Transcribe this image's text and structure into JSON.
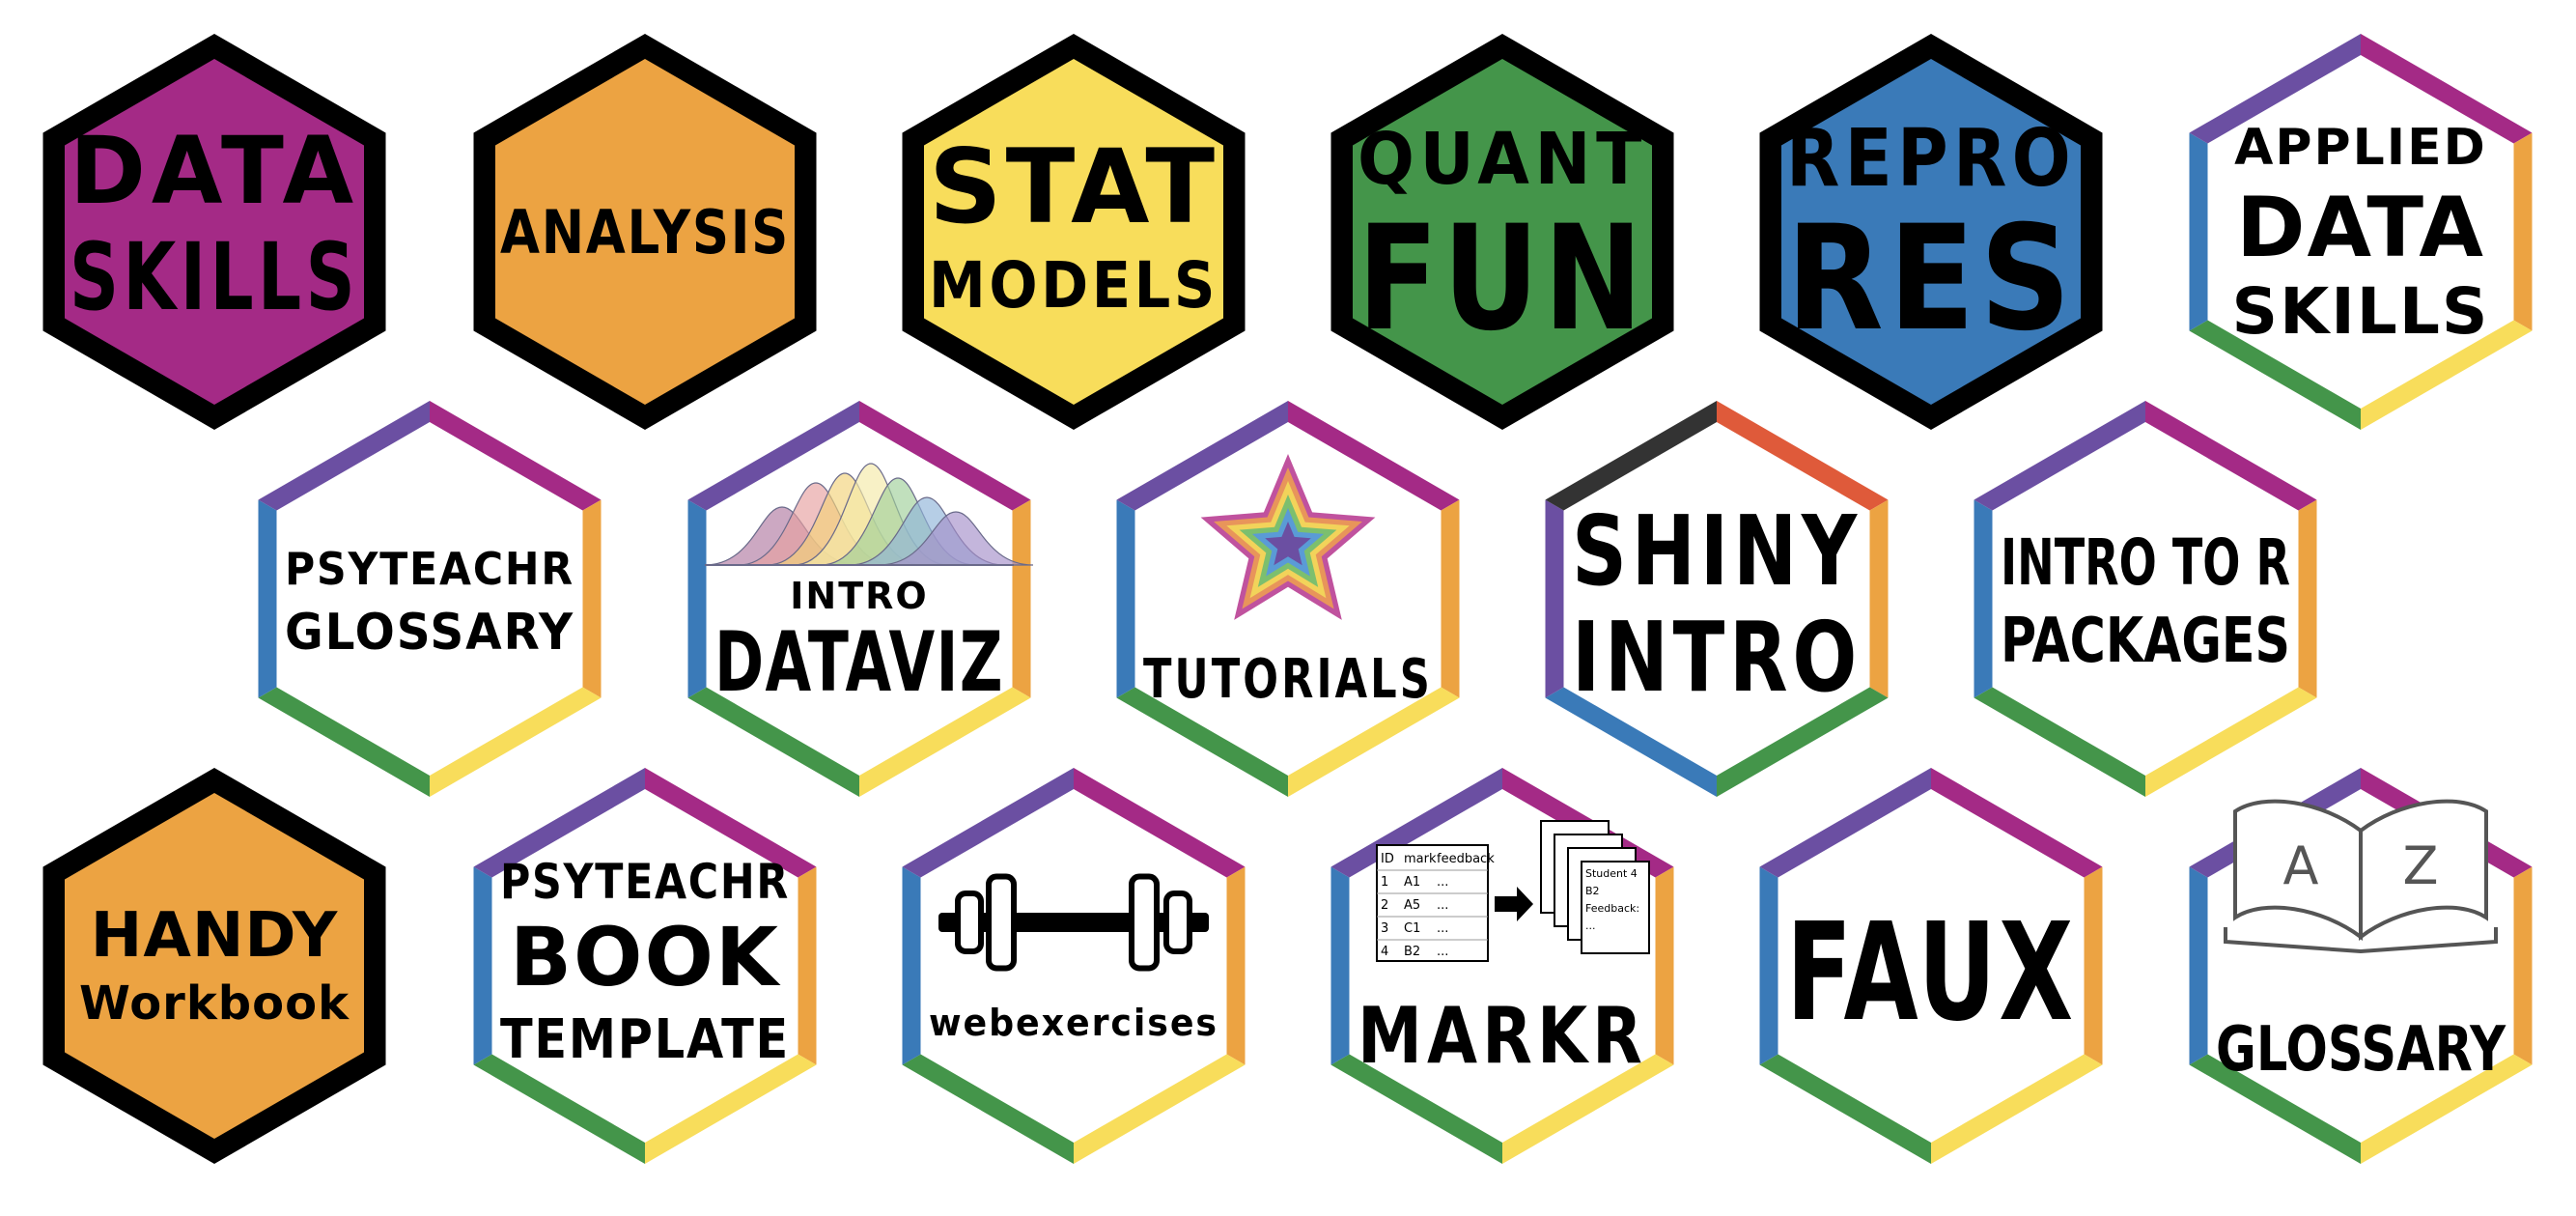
{
  "colors": {
    "purple": "#a42a86",
    "orange": "#eca342",
    "yellow": "#f8dd5b",
    "green": "#44954a",
    "blue": "#3a7ab8",
    "violet": "#6b4fa2",
    "red": "#df5a3a",
    "black": "#000000",
    "white": "#ffffff"
  },
  "stickers": [
    {
      "id": "data-skills",
      "style": "solid",
      "fill": "purple",
      "lines": [
        "DATA",
        "SKILLS"
      ],
      "icon": ""
    },
    {
      "id": "analysis",
      "style": "solid",
      "fill": "orange",
      "lines": [
        "ANALYSIS"
      ],
      "icon": ""
    },
    {
      "id": "stat-models",
      "style": "solid",
      "fill": "yellow",
      "lines": [
        "STAT",
        "MODELS"
      ],
      "icon": ""
    },
    {
      "id": "quant-fun",
      "style": "solid",
      "fill": "green",
      "lines": [
        "QUANT",
        "FUN"
      ],
      "icon": ""
    },
    {
      "id": "repro-res",
      "style": "solid",
      "fill": "blue",
      "lines": [
        "REPRO",
        "RES"
      ],
      "icon": ""
    },
    {
      "id": "applied-data-skills",
      "style": "rainbow",
      "fill": "white",
      "lines": [
        "APPLIED",
        "DATA",
        "SKILLS"
      ],
      "icon": ""
    },
    {
      "id": "psyteachr-glossary",
      "style": "rainbow",
      "fill": "white",
      "lines": [
        "PSYTEACHR",
        "GLOSSARY"
      ],
      "icon": ""
    },
    {
      "id": "intro-dataviz",
      "style": "rainbow",
      "fill": "white",
      "lines": [
        "INTRO",
        "DATAVIZ"
      ],
      "icon": "density-curves-icon"
    },
    {
      "id": "tutorials",
      "style": "rainbow",
      "fill": "white",
      "lines": [
        "TUTORIALS"
      ],
      "icon": "rainbow-star-icon"
    },
    {
      "id": "shiny-intro",
      "style": "rainbow",
      "fill": "white",
      "lines": [
        "SHINY",
        "INTRO"
      ],
      "icon": ""
    },
    {
      "id": "intro-to-r-packages",
      "style": "rainbow",
      "fill": "white",
      "lines": [
        "INTRO TO R",
        "PACKAGES"
      ],
      "icon": ""
    },
    {
      "id": "handy-workbook",
      "style": "solid",
      "fill": "orange",
      "lines": [
        "HANDY",
        "Workbook"
      ],
      "icon": ""
    },
    {
      "id": "psyteachr-book-template",
      "style": "rainbow",
      "fill": "white",
      "lines": [
        "PSYTEACHR",
        "BOOK",
        "TEMPLATE"
      ],
      "icon": ""
    },
    {
      "id": "webexercises",
      "style": "rainbow",
      "fill": "white",
      "lines": [
        "webexercises"
      ],
      "icon": "dumbbell-icon"
    },
    {
      "id": "markr",
      "style": "rainbow",
      "fill": "white",
      "lines": [
        "MARKR"
      ],
      "icon": "marking-table-icon"
    },
    {
      "id": "faux",
      "style": "rainbow",
      "fill": "white",
      "lines": [
        "FAUX"
      ],
      "icon": ""
    },
    {
      "id": "glossary-az",
      "style": "rainbow",
      "fill": "white",
      "lines": [
        "GLOSSARY"
      ],
      "icon": "open-book-icon"
    }
  ],
  "markr_icon": {
    "headers": [
      "ID",
      "mark",
      "feedback"
    ],
    "rows": [
      [
        "1",
        "A1",
        "..."
      ],
      [
        "2",
        "A5",
        "..."
      ],
      [
        "3",
        "C1",
        "..."
      ],
      [
        "4",
        "B2",
        "..."
      ]
    ],
    "card_lines": [
      "Student 4",
      "B2",
      "Feedback:",
      "..."
    ]
  },
  "book_icon": {
    "left_letter": "A",
    "right_letter": "Z"
  }
}
